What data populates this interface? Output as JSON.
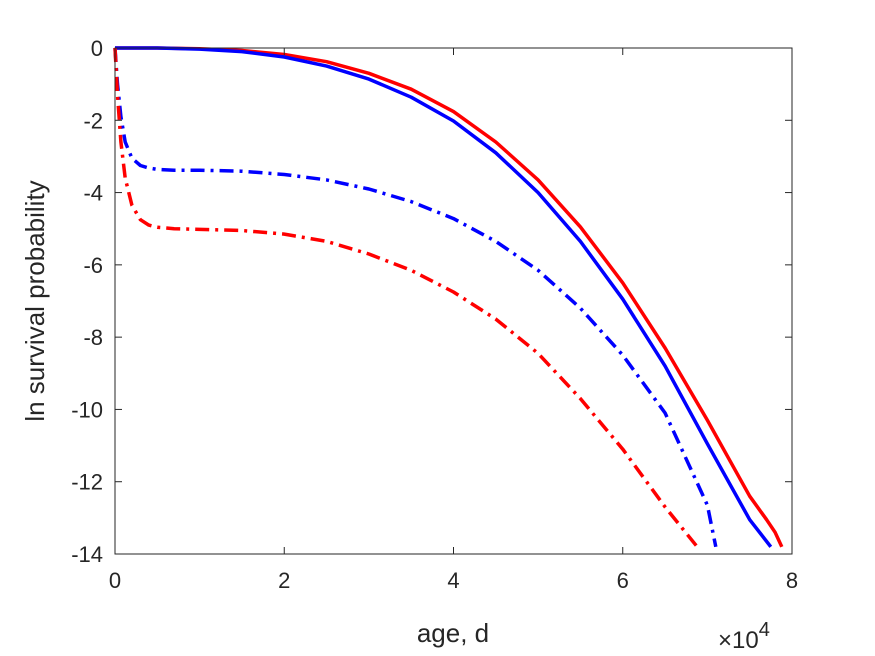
{
  "chart_data": {
    "type": "line",
    "title": "",
    "xlabel": "age, d",
    "ylabel": "ln survival probability",
    "x_exponent_label": {
      "base": "×10",
      "exp": "4"
    },
    "x_scale": 10000,
    "xlim": [
      0,
      80000
    ],
    "ylim": [
      -14,
      0
    ],
    "x_ticks": [
      0,
      20000,
      40000,
      60000,
      80000
    ],
    "x_tick_labels": [
      "0",
      "2",
      "4",
      "6",
      "8"
    ],
    "y_ticks": [
      0,
      -2,
      -4,
      -6,
      -8,
      -10,
      -12,
      -14
    ],
    "y_tick_labels": [
      "0",
      "-2",
      "-4",
      "-6",
      "-8",
      "-10",
      "-12",
      "-14"
    ],
    "grid": false,
    "legend": "none",
    "series": [
      {
        "color": "#ff0000",
        "style": "solid",
        "x": [
          0,
          5000,
          10000,
          15000,
          20000,
          25000,
          30000,
          35000,
          40000,
          45000,
          50000,
          55000,
          60000,
          65000,
          70000,
          75000,
          77000,
          78000,
          78800
        ],
        "y": [
          0,
          0,
          -0.02,
          -0.07,
          -0.18,
          -0.38,
          -0.7,
          -1.14,
          -1.76,
          -2.6,
          -3.65,
          -4.95,
          -6.5,
          -8.3,
          -10.3,
          -12.4,
          -13.05,
          -13.4,
          -13.8
        ]
      },
      {
        "color": "#0000ff",
        "style": "solid",
        "x": [
          0,
          5000,
          10000,
          15000,
          20000,
          25000,
          30000,
          35000,
          40000,
          45000,
          50000,
          55000,
          60000,
          65000,
          70000,
          75000,
          77500
        ],
        "y": [
          0,
          0,
          -0.03,
          -0.1,
          -0.25,
          -0.5,
          -0.86,
          -1.36,
          -2.02,
          -2.9,
          -4.0,
          -5.35,
          -6.95,
          -8.8,
          -10.95,
          -13.05,
          -13.8
        ]
      },
      {
        "color": "#0000ff",
        "style": "dashdot",
        "x": [
          0,
          300,
          700,
          1200,
          2000,
          3000,
          4000,
          5000,
          7000,
          10000,
          15000,
          20000,
          25000,
          30000,
          35000,
          40000,
          45000,
          50000,
          55000,
          60000,
          65000,
          70000,
          71000
        ],
        "y": [
          0,
          -1.0,
          -1.9,
          -2.6,
          -3.05,
          -3.25,
          -3.32,
          -3.36,
          -3.38,
          -3.38,
          -3.41,
          -3.5,
          -3.65,
          -3.9,
          -4.25,
          -4.72,
          -5.35,
          -6.15,
          -7.2,
          -8.5,
          -10.1,
          -12.65,
          -13.8
        ]
      },
      {
        "color": "#ff0000",
        "style": "dashdot",
        "x": [
          0,
          300,
          700,
          1200,
          2000,
          3000,
          4000,
          5000,
          7000,
          10000,
          15000,
          20000,
          25000,
          30000,
          35000,
          40000,
          45000,
          50000,
          55000,
          60000,
          65000,
          68800
        ],
        "y": [
          0,
          -1.3,
          -2.6,
          -3.6,
          -4.35,
          -4.75,
          -4.9,
          -4.96,
          -5.0,
          -5.02,
          -5.05,
          -5.15,
          -5.35,
          -5.7,
          -6.15,
          -6.75,
          -7.5,
          -8.45,
          -9.7,
          -11.1,
          -12.7,
          -13.8
        ]
      }
    ]
  }
}
